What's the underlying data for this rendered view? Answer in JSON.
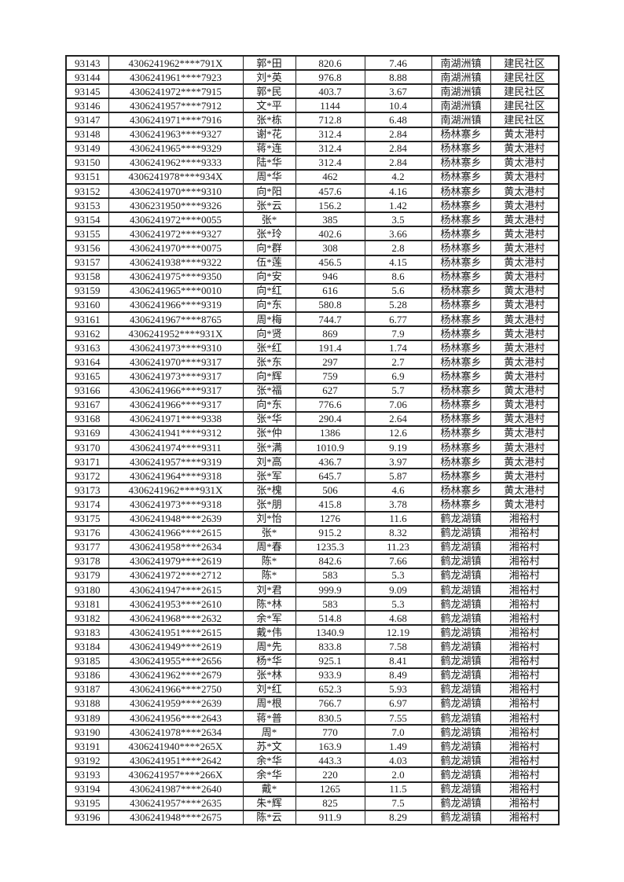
{
  "document": {
    "kind": "masked personal records table page (continuation, no header row)",
    "background_color": "#ffffff",
    "border_color": "#222222",
    "text_color": "#1a1a1a"
  },
  "table": {
    "columns": [
      {
        "key": "seq"
      },
      {
        "key": "id-number"
      },
      {
        "key": "name"
      },
      {
        "key": "amount"
      },
      {
        "key": "area"
      },
      {
        "key": "town"
      },
      {
        "key": "village"
      }
    ],
    "rows": [
      [
        "93143",
        "4306241962****791X",
        "郭*田",
        "820.6",
        "7.46",
        "南湖洲镇",
        "建民社区"
      ],
      [
        "93144",
        "4306241961****7923",
        "刘*英",
        "976.8",
        "8.88",
        "南湖洲镇",
        "建民社区"
      ],
      [
        "93145",
        "4306241972****7915",
        "郭*民",
        "403.7",
        "3.67",
        "南湖洲镇",
        "建民社区"
      ],
      [
        "93146",
        "4306241957****7912",
        "文*平",
        "1144",
        "10.4",
        "南湖洲镇",
        "建民社区"
      ],
      [
        "93147",
        "4306241971****7916",
        "张*栋",
        "712.8",
        "6.48",
        "南湖洲镇",
        "建民社区"
      ],
      [
        "93148",
        "4306241963****9327",
        "谢*花",
        "312.4",
        "2.84",
        "杨林寨乡",
        "黄太港村"
      ],
      [
        "93149",
        "4306241965****9329",
        "蒋*连",
        "312.4",
        "2.84",
        "杨林寨乡",
        "黄太港村"
      ],
      [
        "93150",
        "4306241962****9333",
        "陆*华",
        "312.4",
        "2.84",
        "杨林寨乡",
        "黄太港村"
      ],
      [
        "93151",
        "4306241978****934X",
        "周*华",
        "462",
        "4.2",
        "杨林寨乡",
        "黄太港村"
      ],
      [
        "93152",
        "4306241970****9310",
        "向*阳",
        "457.6",
        "4.16",
        "杨林寨乡",
        "黄太港村"
      ],
      [
        "93153",
        "4306231950****9326",
        "张*云",
        "156.2",
        "1.42",
        "杨林寨乡",
        "黄太港村"
      ],
      [
        "93154",
        "4306241972****0055",
        "张*",
        "385",
        "3.5",
        "杨林寨乡",
        "黄太港村"
      ],
      [
        "93155",
        "4306241972****9327",
        "张*玲",
        "402.6",
        "3.66",
        "杨林寨乡",
        "黄太港村"
      ],
      [
        "93156",
        "4306241970****0075",
        "向*群",
        "308",
        "2.8",
        "杨林寨乡",
        "黄太港村"
      ],
      [
        "93157",
        "4306241938****9322",
        "伍*莲",
        "456.5",
        "4.15",
        "杨林寨乡",
        "黄太港村"
      ],
      [
        "93158",
        "4306241975****9350",
        "向*安",
        "946",
        "8.6",
        "杨林寨乡",
        "黄太港村"
      ],
      [
        "93159",
        "4306241965****0010",
        "向*红",
        "616",
        "5.6",
        "杨林寨乡",
        "黄太港村"
      ],
      [
        "93160",
        "4306241966****9319",
        "向*东",
        "580.8",
        "5.28",
        "杨林寨乡",
        "黄太港村"
      ],
      [
        "93161",
        "4306241967****8765",
        "周*梅",
        "744.7",
        "6.77",
        "杨林寨乡",
        "黄太港村"
      ],
      [
        "93162",
        "4306241952****931X",
        "向*贤",
        "869",
        "7.9",
        "杨林寨乡",
        "黄太港村"
      ],
      [
        "93163",
        "4306241973****9310",
        "张*红",
        "191.4",
        "1.74",
        "杨林寨乡",
        "黄太港村"
      ],
      [
        "93164",
        "4306241970****9317",
        "张*东",
        "297",
        "2.7",
        "杨林寨乡",
        "黄太港村"
      ],
      [
        "93165",
        "4306241973****9317",
        "向*辉",
        "759",
        "6.9",
        "杨林寨乡",
        "黄太港村"
      ],
      [
        "93166",
        "4306241966****9317",
        "张*福",
        "627",
        "5.7",
        "杨林寨乡",
        "黄太港村"
      ],
      [
        "93167",
        "4306241966****9317",
        "向*东",
        "776.6",
        "7.06",
        "杨林寨乡",
        "黄太港村"
      ],
      [
        "93168",
        "4306241971****9338",
        "张*华",
        "290.4",
        "2.64",
        "杨林寨乡",
        "黄太港村"
      ],
      [
        "93169",
        "4306241941****9312",
        "张*仲",
        "1386",
        "12.6",
        "杨林寨乡",
        "黄太港村"
      ],
      [
        "93170",
        "4306241974****9311",
        "张*满",
        "1010.9",
        "9.19",
        "杨林寨乡",
        "黄太港村"
      ],
      [
        "93171",
        "4306241957****9319",
        "刘*高",
        "436.7",
        "3.97",
        "杨林寨乡",
        "黄太港村"
      ],
      [
        "93172",
        "4306241964****9318",
        "张*军",
        "645.7",
        "5.87",
        "杨林寨乡",
        "黄太港村"
      ],
      [
        "93173",
        "4306241962****931X",
        "张*槐",
        "506",
        "4.6",
        "杨林寨乡",
        "黄太港村"
      ],
      [
        "93174",
        "4306241973****9318",
        "张*朋",
        "415.8",
        "3.78",
        "杨林寨乡",
        "黄太港村"
      ],
      [
        "93175",
        "4306241948****2639",
        "刘*怡",
        "1276",
        "11.6",
        "鹤龙湖镇",
        "湘裕村"
      ],
      [
        "93176",
        "4306241966****2615",
        "张*",
        "915.2",
        "8.32",
        "鹤龙湖镇",
        "湘裕村"
      ],
      [
        "93177",
        "4306241958****2634",
        "周*春",
        "1235.3",
        "11.23",
        "鹤龙湖镇",
        "湘裕村"
      ],
      [
        "93178",
        "4306241979****2619",
        "陈*",
        "842.6",
        "7.66",
        "鹤龙湖镇",
        "湘裕村"
      ],
      [
        "93179",
        "4306241972****2712",
        "陈*",
        "583",
        "5.3",
        "鹤龙湖镇",
        "湘裕村"
      ],
      [
        "93180",
        "4306241947****2615",
        "刘*君",
        "999.9",
        "9.09",
        "鹤龙湖镇",
        "湘裕村"
      ],
      [
        "93181",
        "4306241953****2610",
        "陈*林",
        "583",
        "5.3",
        "鹤龙湖镇",
        "湘裕村"
      ],
      [
        "93182",
        "4306241968****2632",
        "余*军",
        "514.8",
        "4.68",
        "鹤龙湖镇",
        "湘裕村"
      ],
      [
        "93183",
        "4306241951****2615",
        "戴*伟",
        "1340.9",
        "12.19",
        "鹤龙湖镇",
        "湘裕村"
      ],
      [
        "93184",
        "4306241949****2619",
        "周*先",
        "833.8",
        "7.58",
        "鹤龙湖镇",
        "湘裕村"
      ],
      [
        "93185",
        "4306241955****2656",
        "杨*华",
        "925.1",
        "8.41",
        "鹤龙湖镇",
        "湘裕村"
      ],
      [
        "93186",
        "4306241962****2679",
        "张*林",
        "933.9",
        "8.49",
        "鹤龙湖镇",
        "湘裕村"
      ],
      [
        "93187",
        "4306241966****2750",
        "刘*红",
        "652.3",
        "5.93",
        "鹤龙湖镇",
        "湘裕村"
      ],
      [
        "93188",
        "4306241959****2639",
        "周*根",
        "766.7",
        "6.97",
        "鹤龙湖镇",
        "湘裕村"
      ],
      [
        "93189",
        "4306241956****2643",
        "蒋*普",
        "830.5",
        "7.55",
        "鹤龙湖镇",
        "湘裕村"
      ],
      [
        "93190",
        "4306241978****2634",
        "周*",
        "770",
        "7.0",
        "鹤龙湖镇",
        "湘裕村"
      ],
      [
        "93191",
        "4306241940****265X",
        "苏*文",
        "163.9",
        "1.49",
        "鹤龙湖镇",
        "湘裕村"
      ],
      [
        "93192",
        "4306241951****2642",
        "余*华",
        "443.3",
        "4.03",
        "鹤龙湖镇",
        "湘裕村"
      ],
      [
        "93193",
        "4306241957****266X",
        "余*华",
        "220",
        "2.0",
        "鹤龙湖镇",
        "湘裕村"
      ],
      [
        "93194",
        "4306241987****2640",
        "戴*",
        "1265",
        "11.5",
        "鹤龙湖镇",
        "湘裕村"
      ],
      [
        "93195",
        "4306241957****2635",
        "朱*辉",
        "825",
        "7.5",
        "鹤龙湖镇",
        "湘裕村"
      ],
      [
        "93196",
        "4306241948****2675",
        "陈*云",
        "911.9",
        "8.29",
        "鹤龙湖镇",
        "湘裕村"
      ]
    ]
  }
}
